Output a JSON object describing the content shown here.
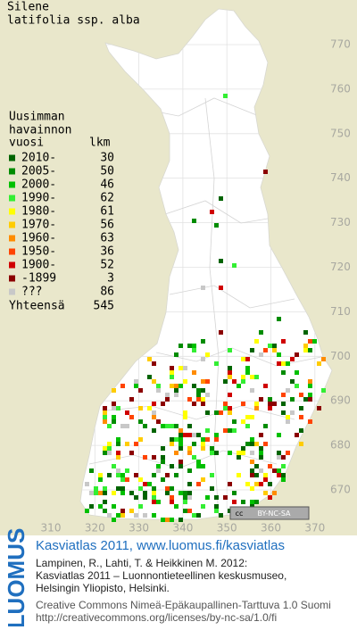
{
  "title": [
    "Silene",
    "latifolia ssp. alba"
  ],
  "legend": {
    "heading": [
      "Uusimman",
      "havainnon"
    ],
    "year_header": "vuosi",
    "count_header": "lkm",
    "items": [
      {
        "label": "2010-",
        "count": 30,
        "color": "#006400"
      },
      {
        "label": "2005-",
        "count": 50,
        "color": "#008c00"
      },
      {
        "label": "2000-",
        "count": 46,
        "color": "#00c000"
      },
      {
        "label": "1990-",
        "count": 62,
        "color": "#33ee33"
      },
      {
        "label": "1980-",
        "count": 61,
        "color": "#ffff00"
      },
      {
        "label": "1970-",
        "count": 56,
        "color": "#ffcc00"
      },
      {
        "label": "1960-",
        "count": 63,
        "color": "#ff8c00"
      },
      {
        "label": "1950-",
        "count": 36,
        "color": "#ff4400"
      },
      {
        "label": "1900-",
        "count": 52,
        "color": "#d00000"
      },
      {
        "label": "-1899",
        "count": 3,
        "color": "#8b0000"
      },
      {
        "label": "???",
        "count": 86,
        "color": "#c8c8c8"
      }
    ],
    "total_label": "Yhteensä",
    "total": 545
  },
  "map": {
    "yticks": [
      770,
      760,
      750,
      740,
      730,
      720,
      710,
      700,
      690,
      680,
      670
    ],
    "xticks": [
      310,
      320,
      330,
      340,
      350,
      360,
      370
    ]
  },
  "license_badge": {
    "cc": "cc",
    "text": "BY-NC-SA"
  },
  "footer": {
    "logo": "LUOMUS",
    "heading": "Kasviatlas 2011, www.luomus.fi/kasviatlas",
    "citation": [
      "Lampinen, R., Lahti, T. & Heikkinen M. 2012:",
      "Kasviatlas 2011 – Luonnontieteellinen keskusmuseo,",
      "Helsingin Yliopisto, Helsinki."
    ],
    "license": [
      "Creative Commons Nimeä-Epäkaupallinen-Tarttuva 1.0 Suomi",
      "http://creativecommons.org/licenses/by-nc-sa/1.0/fi"
    ]
  }
}
